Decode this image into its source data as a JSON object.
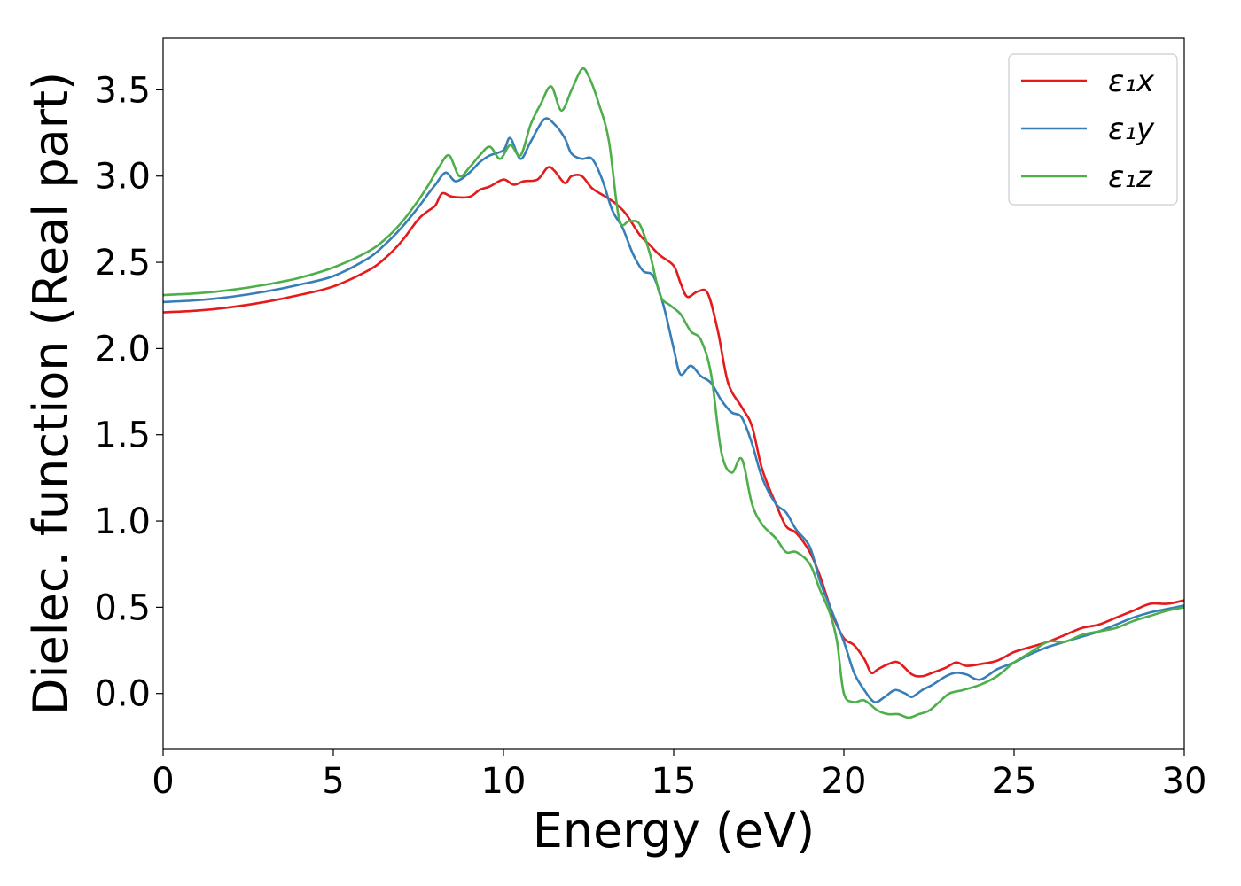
{
  "chart_data": {
    "type": "line",
    "title": "",
    "xlabel": "Energy (eV)",
    "ylabel": "Dielec. function (Real part)",
    "xlim": [
      0,
      30
    ],
    "ylim": [
      -0.32,
      3.8
    ],
    "xticks": [
      0,
      5,
      10,
      15,
      20,
      25,
      30
    ],
    "yticks": [
      0.0,
      0.5,
      1.0,
      1.5,
      2.0,
      2.5,
      3.0,
      3.5
    ],
    "xtick_labels": [
      "0",
      "5",
      "10",
      "15",
      "20",
      "25",
      "30"
    ],
    "ytick_labels": [
      "0.0",
      "0.5",
      "1.0",
      "1.5",
      "2.0",
      "2.5",
      "3.0",
      "3.5"
    ],
    "grid": false,
    "legend_position": "top-right",
    "series": [
      {
        "name": "ε₁x",
        "color": "#e41a1c",
        "x": [
          0,
          1,
          2,
          3,
          4,
          5,
          6,
          6.5,
          7,
          7.5,
          7.8,
          8,
          8.2,
          8.5,
          9,
          9.3,
          9.6,
          10,
          10.3,
          10.6,
          11,
          11.3,
          11.5,
          11.8,
          12,
          12.3,
          12.6,
          13,
          13.3,
          13.6,
          14,
          14.3,
          14.6,
          15,
          15.2,
          15.4,
          15.7,
          16,
          16.3,
          16.6,
          17,
          17.3,
          17.6,
          18,
          18.3,
          18.6,
          19,
          19.3,
          19.5,
          19.7,
          20,
          20.3,
          20.6,
          20.8,
          21,
          21.3,
          21.6,
          22,
          22.3,
          22.6,
          23,
          23.3,
          23.6,
          24,
          24.5,
          25,
          25.5,
          26,
          26.5,
          27,
          27.5,
          28,
          28.5,
          29,
          29.5,
          30
        ],
        "y": [
          2.21,
          2.22,
          2.24,
          2.27,
          2.31,
          2.36,
          2.45,
          2.52,
          2.62,
          2.75,
          2.8,
          2.83,
          2.9,
          2.88,
          2.88,
          2.92,
          2.94,
          2.98,
          2.95,
          2.97,
          2.98,
          3.05,
          3.03,
          2.96,
          3.0,
          3.0,
          2.93,
          2.88,
          2.84,
          2.78,
          2.66,
          2.6,
          2.54,
          2.48,
          2.38,
          2.3,
          2.33,
          2.32,
          2.1,
          1.8,
          1.66,
          1.55,
          1.3,
          1.1,
          0.97,
          0.93,
          0.82,
          0.68,
          0.56,
          0.44,
          0.32,
          0.28,
          0.2,
          0.12,
          0.14,
          0.17,
          0.18,
          0.11,
          0.1,
          0.12,
          0.15,
          0.18,
          0.16,
          0.17,
          0.19,
          0.24,
          0.27,
          0.3,
          0.34,
          0.38,
          0.4,
          0.44,
          0.48,
          0.52,
          0.52,
          0.54
        ]
      },
      {
        "name": "ε₁y",
        "color": "#377eb8",
        "x": [
          0,
          1,
          2,
          3,
          4,
          5,
          6,
          6.5,
          7,
          7.5,
          7.8,
          8,
          8.3,
          8.6,
          9,
          9.3,
          9.6,
          10,
          10.2,
          10.5,
          10.8,
          11.2,
          11.5,
          11.8,
          12,
          12.3,
          12.6,
          12.9,
          13.2,
          13.5,
          13.8,
          14.1,
          14.4,
          14.7,
          15,
          15.2,
          15.5,
          15.8,
          16.1,
          16.4,
          16.7,
          17,
          17.3,
          17.6,
          18,
          18.3,
          18.6,
          19,
          19.3,
          19.6,
          20,
          20.3,
          20.6,
          20.9,
          21.2,
          21.5,
          21.8,
          22,
          22.3,
          22.6,
          23,
          23.3,
          23.6,
          24,
          24.5,
          25,
          25.5,
          26,
          26.5,
          27,
          27.5,
          28,
          28.5,
          29,
          29.5,
          30
        ],
        "y": [
          2.27,
          2.28,
          2.3,
          2.33,
          2.37,
          2.42,
          2.52,
          2.6,
          2.7,
          2.82,
          2.9,
          2.95,
          3.02,
          2.97,
          3.02,
          3.08,
          3.12,
          3.15,
          3.22,
          3.1,
          3.2,
          3.33,
          3.3,
          3.22,
          3.13,
          3.1,
          3.1,
          2.98,
          2.8,
          2.7,
          2.55,
          2.45,
          2.42,
          2.25,
          2.0,
          1.85,
          1.9,
          1.84,
          1.8,
          1.7,
          1.63,
          1.6,
          1.45,
          1.25,
          1.1,
          1.05,
          0.95,
          0.85,
          0.65,
          0.5,
          0.3,
          0.12,
          0.02,
          -0.05,
          -0.02,
          0.02,
          0.0,
          -0.02,
          0.02,
          0.05,
          0.1,
          0.12,
          0.11,
          0.08,
          0.14,
          0.18,
          0.23,
          0.27,
          0.3,
          0.33,
          0.36,
          0.4,
          0.44,
          0.47,
          0.49,
          0.51
        ]
      },
      {
        "name": "ε₁z",
        "color": "#4daf4a",
        "x": [
          0,
          1,
          2,
          3,
          4,
          5,
          6,
          6.5,
          7,
          7.5,
          7.8,
          8.1,
          8.4,
          8.7,
          9,
          9.3,
          9.6,
          9.9,
          10.2,
          10.5,
          10.8,
          11.1,
          11.4,
          11.7,
          12,
          12.3,
          12.5,
          12.8,
          13.1,
          13.4,
          13.7,
          14,
          14.3,
          14.6,
          14.9,
          15.2,
          15.5,
          15.8,
          16.1,
          16.4,
          16.7,
          17,
          17.3,
          17.6,
          18,
          18.3,
          18.6,
          19,
          19.3,
          19.6,
          19.8,
          20,
          20.3,
          20.6,
          21,
          21.3,
          21.6,
          21.9,
          22.2,
          22.5,
          22.8,
          23.1,
          23.5,
          24,
          24.5,
          25,
          25.5,
          26,
          26.5,
          27,
          27.5,
          28,
          28.5,
          29,
          29.5,
          30
        ],
        "y": [
          2.31,
          2.32,
          2.34,
          2.37,
          2.41,
          2.47,
          2.56,
          2.63,
          2.73,
          2.86,
          2.95,
          3.05,
          3.12,
          3.0,
          3.05,
          3.12,
          3.17,
          3.1,
          3.18,
          3.12,
          3.3,
          3.42,
          3.52,
          3.38,
          3.5,
          3.62,
          3.58,
          3.42,
          3.2,
          2.75,
          2.74,
          2.72,
          2.55,
          2.31,
          2.25,
          2.2,
          2.1,
          2.05,
          1.85,
          1.4,
          1.28,
          1.36,
          1.1,
          0.98,
          0.9,
          0.82,
          0.82,
          0.75,
          0.6,
          0.46,
          0.3,
          0.0,
          -0.05,
          -0.04,
          -0.1,
          -0.12,
          -0.12,
          -0.14,
          -0.12,
          -0.1,
          -0.05,
          0.0,
          0.02,
          0.05,
          0.1,
          0.18,
          0.24,
          0.3,
          0.3,
          0.34,
          0.36,
          0.38,
          0.42,
          0.45,
          0.48,
          0.5
        ]
      }
    ]
  }
}
